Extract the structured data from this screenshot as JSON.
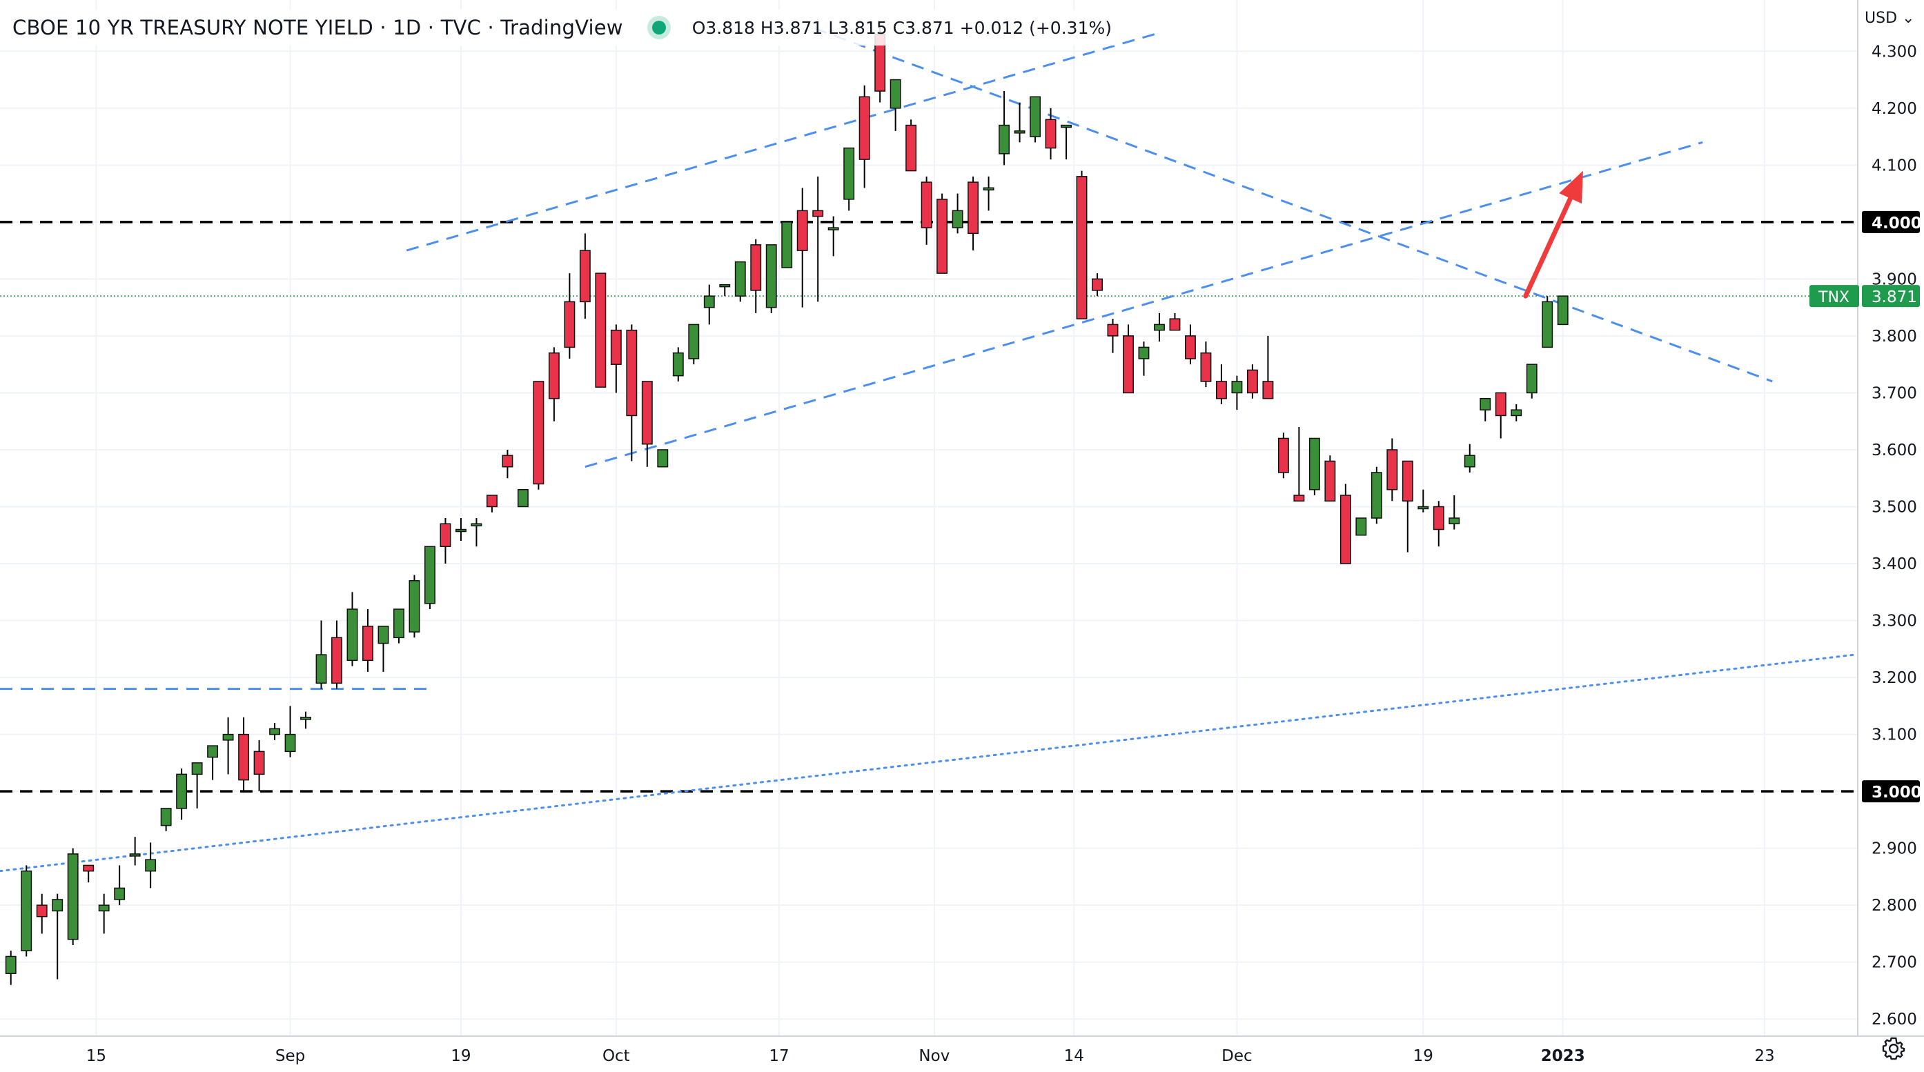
{
  "header": {
    "title": "CBOE 10 YR TREASURY NOTE YIELD · 1D · TVC · TradingView",
    "ohlc": "O3.818  H3.871  L3.815  C3.871  +0.012 (+0.31%)"
  },
  "currency": "USD",
  "colors": {
    "up": "#3b8f38",
    "down": "#e8334b",
    "grid": "#f0f3fa",
    "trendline": "#4c8ff0",
    "level": "#000000",
    "badge": "#1f9b4d",
    "arrow": "#ef3b3b"
  },
  "chart_data": {
    "type": "candlestick",
    "symbol_label": "TNX",
    "last_value_label": "3.871",
    "y_ticks": [
      "2.600",
      "2.700",
      "2.800",
      "2.900",
      "3.000",
      "3.100",
      "3.200",
      "3.300",
      "3.400",
      "3.500",
      "3.600",
      "3.700",
      "3.800",
      "3.900",
      "4.000",
      "4.100",
      "4.200",
      "4.300"
    ],
    "x_ticks": [
      "15",
      "Sep",
      "19",
      "Oct",
      "17",
      "Nov",
      "14",
      "Dec",
      "19",
      "2023",
      "23"
    ],
    "x_tick_index": [
      5.5,
      18,
      29,
      39,
      49.5,
      59.5,
      68.5,
      79,
      91,
      100,
      113
    ],
    "ylim": [
      2.57,
      4.39
    ],
    "xlim": [
      -0.7,
      119
    ],
    "levels": [
      {
        "value": 4.0,
        "label": "4.000"
      },
      {
        "value": 3.0,
        "label": "3.000"
      }
    ],
    "candles": [
      [
        2.68,
        2.72,
        2.71,
        2.66
      ],
      [
        2.72,
        2.87,
        2.86,
        2.71
      ],
      [
        2.8,
        2.82,
        2.78,
        2.75
      ],
      [
        2.79,
        2.82,
        2.81,
        2.67
      ],
      [
        2.74,
        2.9,
        2.89,
        2.73
      ],
      [
        2.87,
        2.87,
        2.86,
        2.84
      ],
      [
        2.79,
        2.82,
        2.8,
        2.75
      ],
      [
        2.81,
        2.87,
        2.83,
        2.8
      ],
      [
        2.89,
        2.92,
        2.89,
        2.87
      ],
      [
        2.86,
        2.91,
        2.88,
        2.83
      ],
      [
        2.94,
        2.96,
        2.97,
        2.93
      ],
      [
        2.97,
        3.04,
        3.03,
        2.95
      ],
      [
        3.03,
        3.05,
        3.05,
        2.97
      ],
      [
        3.06,
        3.08,
        3.08,
        3.02
      ],
      [
        3.09,
        3.13,
        3.1,
        3.03
      ],
      [
        3.1,
        3.13,
        3.02,
        3.0
      ],
      [
        3.07,
        3.09,
        3.03,
        3.0
      ],
      [
        3.1,
        3.12,
        3.11,
        3.09
      ],
      [
        3.07,
        3.15,
        3.1,
        3.06
      ],
      [
        3.13,
        3.14,
        3.13,
        3.11
      ],
      [
        3.19,
        3.3,
        3.24,
        3.18
      ],
      [
        3.27,
        3.3,
        3.19,
        3.18
      ],
      [
        3.23,
        3.35,
        3.32,
        3.22
      ],
      [
        3.29,
        3.32,
        3.23,
        3.21
      ],
      [
        3.26,
        3.29,
        3.29,
        3.21
      ],
      [
        3.27,
        3.31,
        3.32,
        3.26
      ],
      [
        3.28,
        3.38,
        3.37,
        3.27
      ],
      [
        3.33,
        3.4,
        3.43,
        3.32
      ],
      [
        3.47,
        3.48,
        3.43,
        3.4
      ],
      [
        3.46,
        3.48,
        3.46,
        3.44
      ],
      [
        3.47,
        3.48,
        3.47,
        3.43
      ],
      [
        3.52,
        3.52,
        3.5,
        3.49
      ],
      [
        3.59,
        3.6,
        3.57,
        3.55
      ],
      [
        3.5,
        3.51,
        3.53,
        3.5
      ],
      [
        3.72,
        3.72,
        3.54,
        3.53
      ],
      [
        3.77,
        3.78,
        3.69,
        3.65
      ],
      [
        3.86,
        3.91,
        3.78,
        3.76
      ],
      [
        3.95,
        3.98,
        3.86,
        3.83
      ],
      [
        3.91,
        3.89,
        3.71,
        3.71
      ],
      [
        3.81,
        3.82,
        3.75,
        3.7
      ],
      [
        3.81,
        3.82,
        3.66,
        3.58
      ],
      [
        3.72,
        3.71,
        3.61,
        3.57
      ],
      [
        3.57,
        3.6,
        3.6,
        3.57
      ],
      [
        3.73,
        3.78,
        3.77,
        3.72
      ],
      [
        3.76,
        3.81,
        3.82,
        3.75
      ],
      [
        3.85,
        3.89,
        3.87,
        3.82
      ],
      [
        3.89,
        3.89,
        3.89,
        3.87
      ],
      [
        3.87,
        3.93,
        3.93,
        3.86
      ],
      [
        3.96,
        3.97,
        3.88,
        3.84
      ],
      [
        3.85,
        3.87,
        3.96,
        3.84
      ],
      [
        3.92,
        3.94,
        4.0,
        3.92
      ],
      [
        4.02,
        4.06,
        3.95,
        3.85
      ],
      [
        4.02,
        4.08,
        4.01,
        3.86
      ],
      [
        3.99,
        4.01,
        3.99,
        3.94
      ],
      [
        4.04,
        4.13,
        4.13,
        4.02
      ],
      [
        4.22,
        4.24,
        4.11,
        4.06
      ],
      [
        4.33,
        4.35,
        4.23,
        4.21
      ],
      [
        4.2,
        4.25,
        4.25,
        4.16
      ],
      [
        4.17,
        4.18,
        4.09,
        4.1
      ],
      [
        4.07,
        4.08,
        3.99,
        3.96
      ],
      [
        4.04,
        4.05,
        3.91,
        3.92
      ],
      [
        3.99,
        4.05,
        4.02,
        3.98
      ],
      [
        4.07,
        4.08,
        3.98,
        3.95
      ],
      [
        4.06,
        4.08,
        4.06,
        4.02
      ],
      [
        4.12,
        4.23,
        4.17,
        4.1
      ],
      [
        4.16,
        4.21,
        4.16,
        4.14
      ],
      [
        4.15,
        4.22,
        4.22,
        4.14
      ],
      [
        4.18,
        4.2,
        4.13,
        4.11
      ],
      [
        4.17,
        4.17,
        4.17,
        4.11
      ],
      [
        4.08,
        4.09,
        3.83,
        3.83
      ],
      [
        3.9,
        3.91,
        3.88,
        3.87
      ],
      [
        3.82,
        3.83,
        3.8,
        3.77
      ],
      [
        3.8,
        3.82,
        3.7,
        3.7
      ],
      [
        3.76,
        3.79,
        3.78,
        3.73
      ],
      [
        3.81,
        3.84,
        3.82,
        3.79
      ],
      [
        3.83,
        3.84,
        3.81,
        3.81
      ],
      [
        3.8,
        3.82,
        3.76,
        3.75
      ],
      [
        3.77,
        3.79,
        3.72,
        3.71
      ],
      [
        3.72,
        3.75,
        3.69,
        3.68
      ],
      [
        3.7,
        3.73,
        3.72,
        3.67
      ],
      [
        3.74,
        3.75,
        3.7,
        3.69
      ],
      [
        3.72,
        3.8,
        3.69,
        3.69
      ],
      [
        3.62,
        3.63,
        3.56,
        3.55
      ],
      [
        3.52,
        3.64,
        3.51,
        3.52
      ],
      [
        3.53,
        3.61,
        3.62,
        3.52
      ],
      [
        3.58,
        3.59,
        3.51,
        3.51
      ],
      [
        3.52,
        3.54,
        3.4,
        3.4
      ],
      [
        3.45,
        3.48,
        3.48,
        3.46
      ],
      [
        3.48,
        3.57,
        3.56,
        3.47
      ],
      [
        3.6,
        3.62,
        3.53,
        3.51
      ],
      [
        3.58,
        3.58,
        3.51,
        3.42
      ],
      [
        3.5,
        3.53,
        3.5,
        3.49
      ],
      [
        3.5,
        3.51,
        3.46,
        3.43
      ],
      [
        3.47,
        3.52,
        3.48,
        3.46
      ],
      [
        3.57,
        3.61,
        3.59,
        3.56
      ],
      [
        3.67,
        3.69,
        3.69,
        3.65
      ],
      [
        3.7,
        3.68,
        3.66,
        3.62
      ],
      [
        3.66,
        3.68,
        3.67,
        3.65
      ],
      [
        3.7,
        3.75,
        3.75,
        3.69
      ],
      [
        3.78,
        3.87,
        3.86,
        3.78
      ],
      [
        3.82,
        3.87,
        3.87,
        3.82
      ]
    ],
    "trendlines": [
      {
        "style": "dashed",
        "from": [
          25.5,
          3.95
        ],
        "to": [
          73.7,
          4.33
        ]
      },
      {
        "style": "dashed",
        "from": [
          37,
          3.57
        ],
        "to": [
          109,
          4.14
        ]
      },
      {
        "style": "dashed",
        "from": [
          51.8,
          4.34
        ],
        "to": [
          113.5,
          3.72
        ]
      },
      {
        "style": "dashed",
        "from": [
          -0.7,
          3.18
        ],
        "to": [
          27,
          3.18
        ]
      },
      {
        "style": "dotted",
        "from": [
          -0.7,
          2.86
        ],
        "to": [
          118.8,
          3.24
        ]
      }
    ],
    "arrow": {
      "from": [
        97.6,
        3.87
      ],
      "to": [
        101.3,
        4.09
      ]
    }
  }
}
